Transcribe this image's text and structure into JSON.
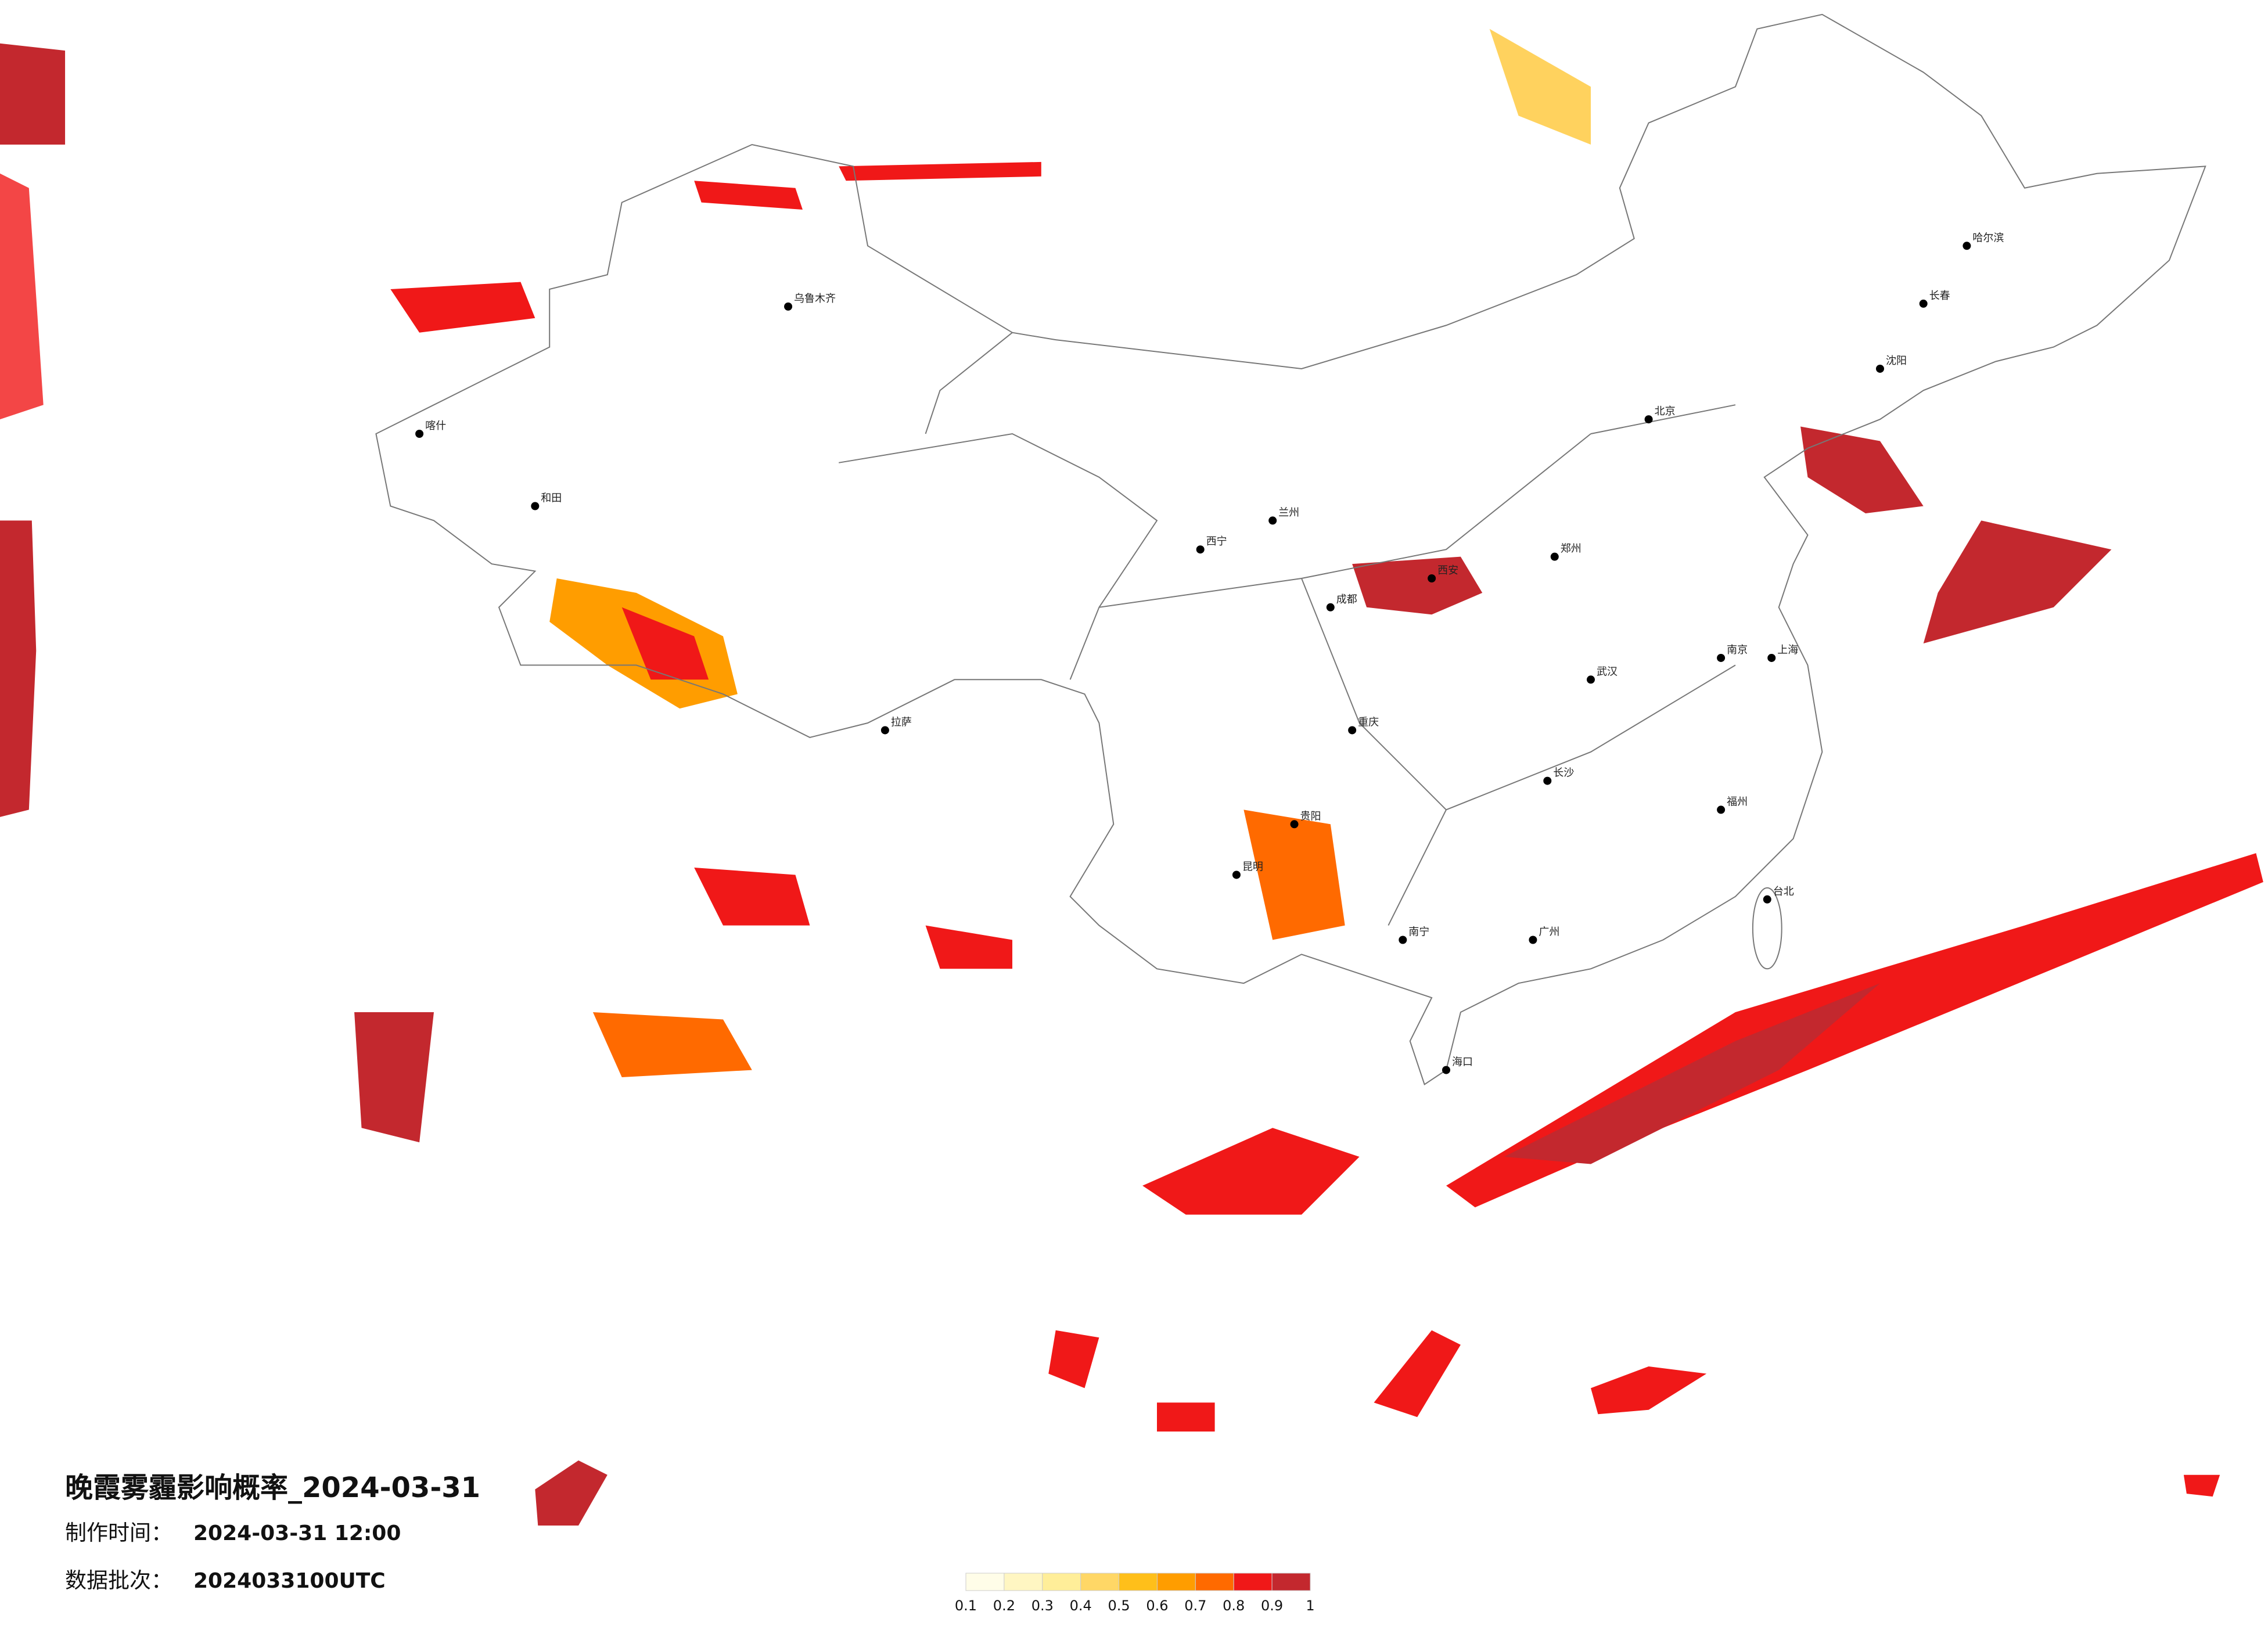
{
  "title": "晚霞雾霾影响概率_2024-03-31",
  "made_label": "制作时间：",
  "made_time": "2024-03-31 12:00",
  "batch_label": "数据批次：",
  "batch": "2024033100UTC",
  "legend": {
    "colors": [
      "#fffde8",
      "#fff6c2",
      "#ffee99",
      "#ffd766",
      "#ffbf1a",
      "#ff9d00",
      "#ff6a00",
      "#f01818",
      "#c3282e"
    ],
    "ticks": [
      0.1,
      0.2,
      0.3,
      0.4,
      0.5,
      0.6,
      0.7,
      0.8,
      0.9,
      1
    ]
  },
  "cities": [
    "北京",
    "哈尔滨",
    "乌鲁木齐",
    "拉萨",
    "昆明",
    "广州",
    "成都",
    "西安",
    "武汉",
    "南京",
    "上海",
    "重庆",
    "长春",
    "沈阳",
    "郑州",
    "长沙",
    "南宁",
    "福州",
    "贵阳",
    "兰州",
    "西宁",
    "喀什",
    "和田",
    "海口",
    "台北"
  ]
}
